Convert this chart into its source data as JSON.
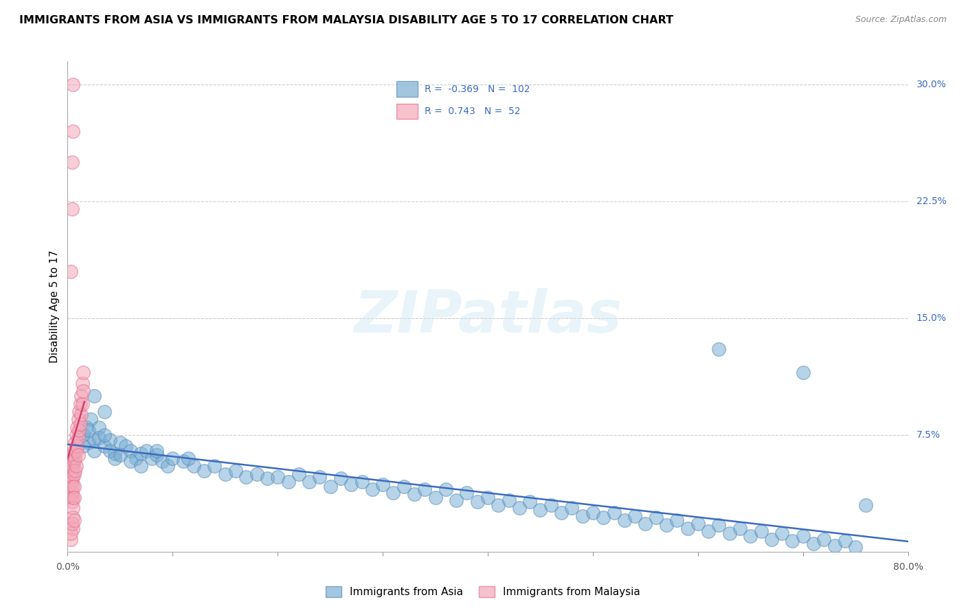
{
  "title": "IMMIGRANTS FROM ASIA VS IMMIGRANTS FROM MALAYSIA DISABILITY AGE 5 TO 17 CORRELATION CHART",
  "source": "Source: ZipAtlas.com",
  "ylabel": "Disability Age 5 to 17",
  "xlim": [
    0.0,
    0.8
  ],
  "ylim": [
    0.0,
    0.315
  ],
  "xtick_left_label": "0.0%",
  "xtick_right_label": "80.0%",
  "yticks_right": [
    0.075,
    0.15,
    0.225,
    0.3
  ],
  "ytick_right_labels": [
    "7.5%",
    "15.0%",
    "22.5%",
    "30.0%"
  ],
  "grid_color": "#cccccc",
  "background_color": "#ffffff",
  "blue_color": "#7bafd4",
  "pink_color": "#f4a7b9",
  "blue_edge_color": "#5b8db8",
  "pink_edge_color": "#e07090",
  "blue_line_color": "#3a6bbf",
  "pink_line_color": "#d04070",
  "blue_R": -0.369,
  "blue_N": 102,
  "pink_R": 0.743,
  "pink_N": 52,
  "legend_label_blue": "Immigrants from Asia",
  "legend_label_pink": "Immigrants from Malaysia",
  "title_fontsize": 11.5,
  "axis_label_fontsize": 11,
  "tick_fontsize": 10,
  "legend_fontsize": 11,
  "blue_scatter_x": [
    0.015,
    0.018,
    0.02,
    0.022,
    0.025,
    0.015,
    0.02,
    0.025,
    0.03,
    0.03,
    0.035,
    0.04,
    0.045,
    0.035,
    0.04,
    0.05,
    0.045,
    0.055,
    0.05,
    0.06,
    0.065,
    0.07,
    0.06,
    0.075,
    0.07,
    0.08,
    0.085,
    0.09,
    0.095,
    0.085,
    0.1,
    0.11,
    0.12,
    0.13,
    0.115,
    0.14,
    0.15,
    0.16,
    0.17,
    0.18,
    0.19,
    0.2,
    0.21,
    0.22,
    0.23,
    0.24,
    0.25,
    0.26,
    0.27,
    0.28,
    0.29,
    0.3,
    0.31,
    0.32,
    0.33,
    0.34,
    0.35,
    0.36,
    0.37,
    0.38,
    0.39,
    0.4,
    0.41,
    0.42,
    0.43,
    0.44,
    0.45,
    0.46,
    0.47,
    0.48,
    0.49,
    0.5,
    0.51,
    0.52,
    0.53,
    0.54,
    0.55,
    0.56,
    0.57,
    0.58,
    0.59,
    0.6,
    0.61,
    0.62,
    0.63,
    0.64,
    0.65,
    0.66,
    0.67,
    0.68,
    0.69,
    0.7,
    0.71,
    0.72,
    0.73,
    0.74,
    0.75,
    0.62,
    0.7,
    0.76,
    0.035,
    0.025
  ],
  "blue_scatter_y": [
    0.075,
    0.08,
    0.07,
    0.085,
    0.072,
    0.068,
    0.078,
    0.065,
    0.08,
    0.073,
    0.068,
    0.072,
    0.063,
    0.075,
    0.065,
    0.07,
    0.06,
    0.068,
    0.062,
    0.065,
    0.06,
    0.063,
    0.058,
    0.065,
    0.055,
    0.06,
    0.062,
    0.058,
    0.055,
    0.065,
    0.06,
    0.058,
    0.055,
    0.052,
    0.06,
    0.055,
    0.05,
    0.052,
    0.048,
    0.05,
    0.047,
    0.048,
    0.045,
    0.05,
    0.045,
    0.048,
    0.042,
    0.047,
    0.043,
    0.045,
    0.04,
    0.043,
    0.038,
    0.042,
    0.037,
    0.04,
    0.035,
    0.04,
    0.033,
    0.038,
    0.032,
    0.035,
    0.03,
    0.033,
    0.028,
    0.032,
    0.027,
    0.03,
    0.025,
    0.028,
    0.023,
    0.025,
    0.022,
    0.025,
    0.02,
    0.023,
    0.018,
    0.022,
    0.017,
    0.02,
    0.015,
    0.018,
    0.013,
    0.017,
    0.012,
    0.015,
    0.01,
    0.013,
    0.008,
    0.012,
    0.007,
    0.01,
    0.005,
    0.008,
    0.004,
    0.007,
    0.003,
    0.13,
    0.115,
    0.03,
    0.09,
    0.1
  ],
  "pink_scatter_x": [
    0.003,
    0.003,
    0.003,
    0.003,
    0.004,
    0.004,
    0.004,
    0.004,
    0.004,
    0.005,
    0.005,
    0.005,
    0.005,
    0.005,
    0.005,
    0.005,
    0.005,
    0.006,
    0.006,
    0.006,
    0.006,
    0.006,
    0.007,
    0.007,
    0.007,
    0.008,
    0.008,
    0.008,
    0.009,
    0.009,
    0.01,
    0.01,
    0.01,
    0.011,
    0.011,
    0.012,
    0.012,
    0.013,
    0.013,
    0.014,
    0.014,
    0.015,
    0.015,
    0.003,
    0.004,
    0.005,
    0.005,
    0.004,
    0.003,
    0.003,
    0.004,
    0.006
  ],
  "pink_scatter_y": [
    0.055,
    0.048,
    0.042,
    0.035,
    0.058,
    0.052,
    0.045,
    0.038,
    0.032,
    0.062,
    0.055,
    0.048,
    0.042,
    0.035,
    0.028,
    0.022,
    0.015,
    0.065,
    0.058,
    0.05,
    0.042,
    0.035,
    0.07,
    0.06,
    0.052,
    0.075,
    0.065,
    0.055,
    0.08,
    0.068,
    0.085,
    0.073,
    0.062,
    0.09,
    0.078,
    0.095,
    0.082,
    0.1,
    0.088,
    0.108,
    0.095,
    0.115,
    0.103,
    0.18,
    0.22,
    0.27,
    0.3,
    0.25,
    0.008,
    0.012,
    0.018,
    0.02
  ]
}
